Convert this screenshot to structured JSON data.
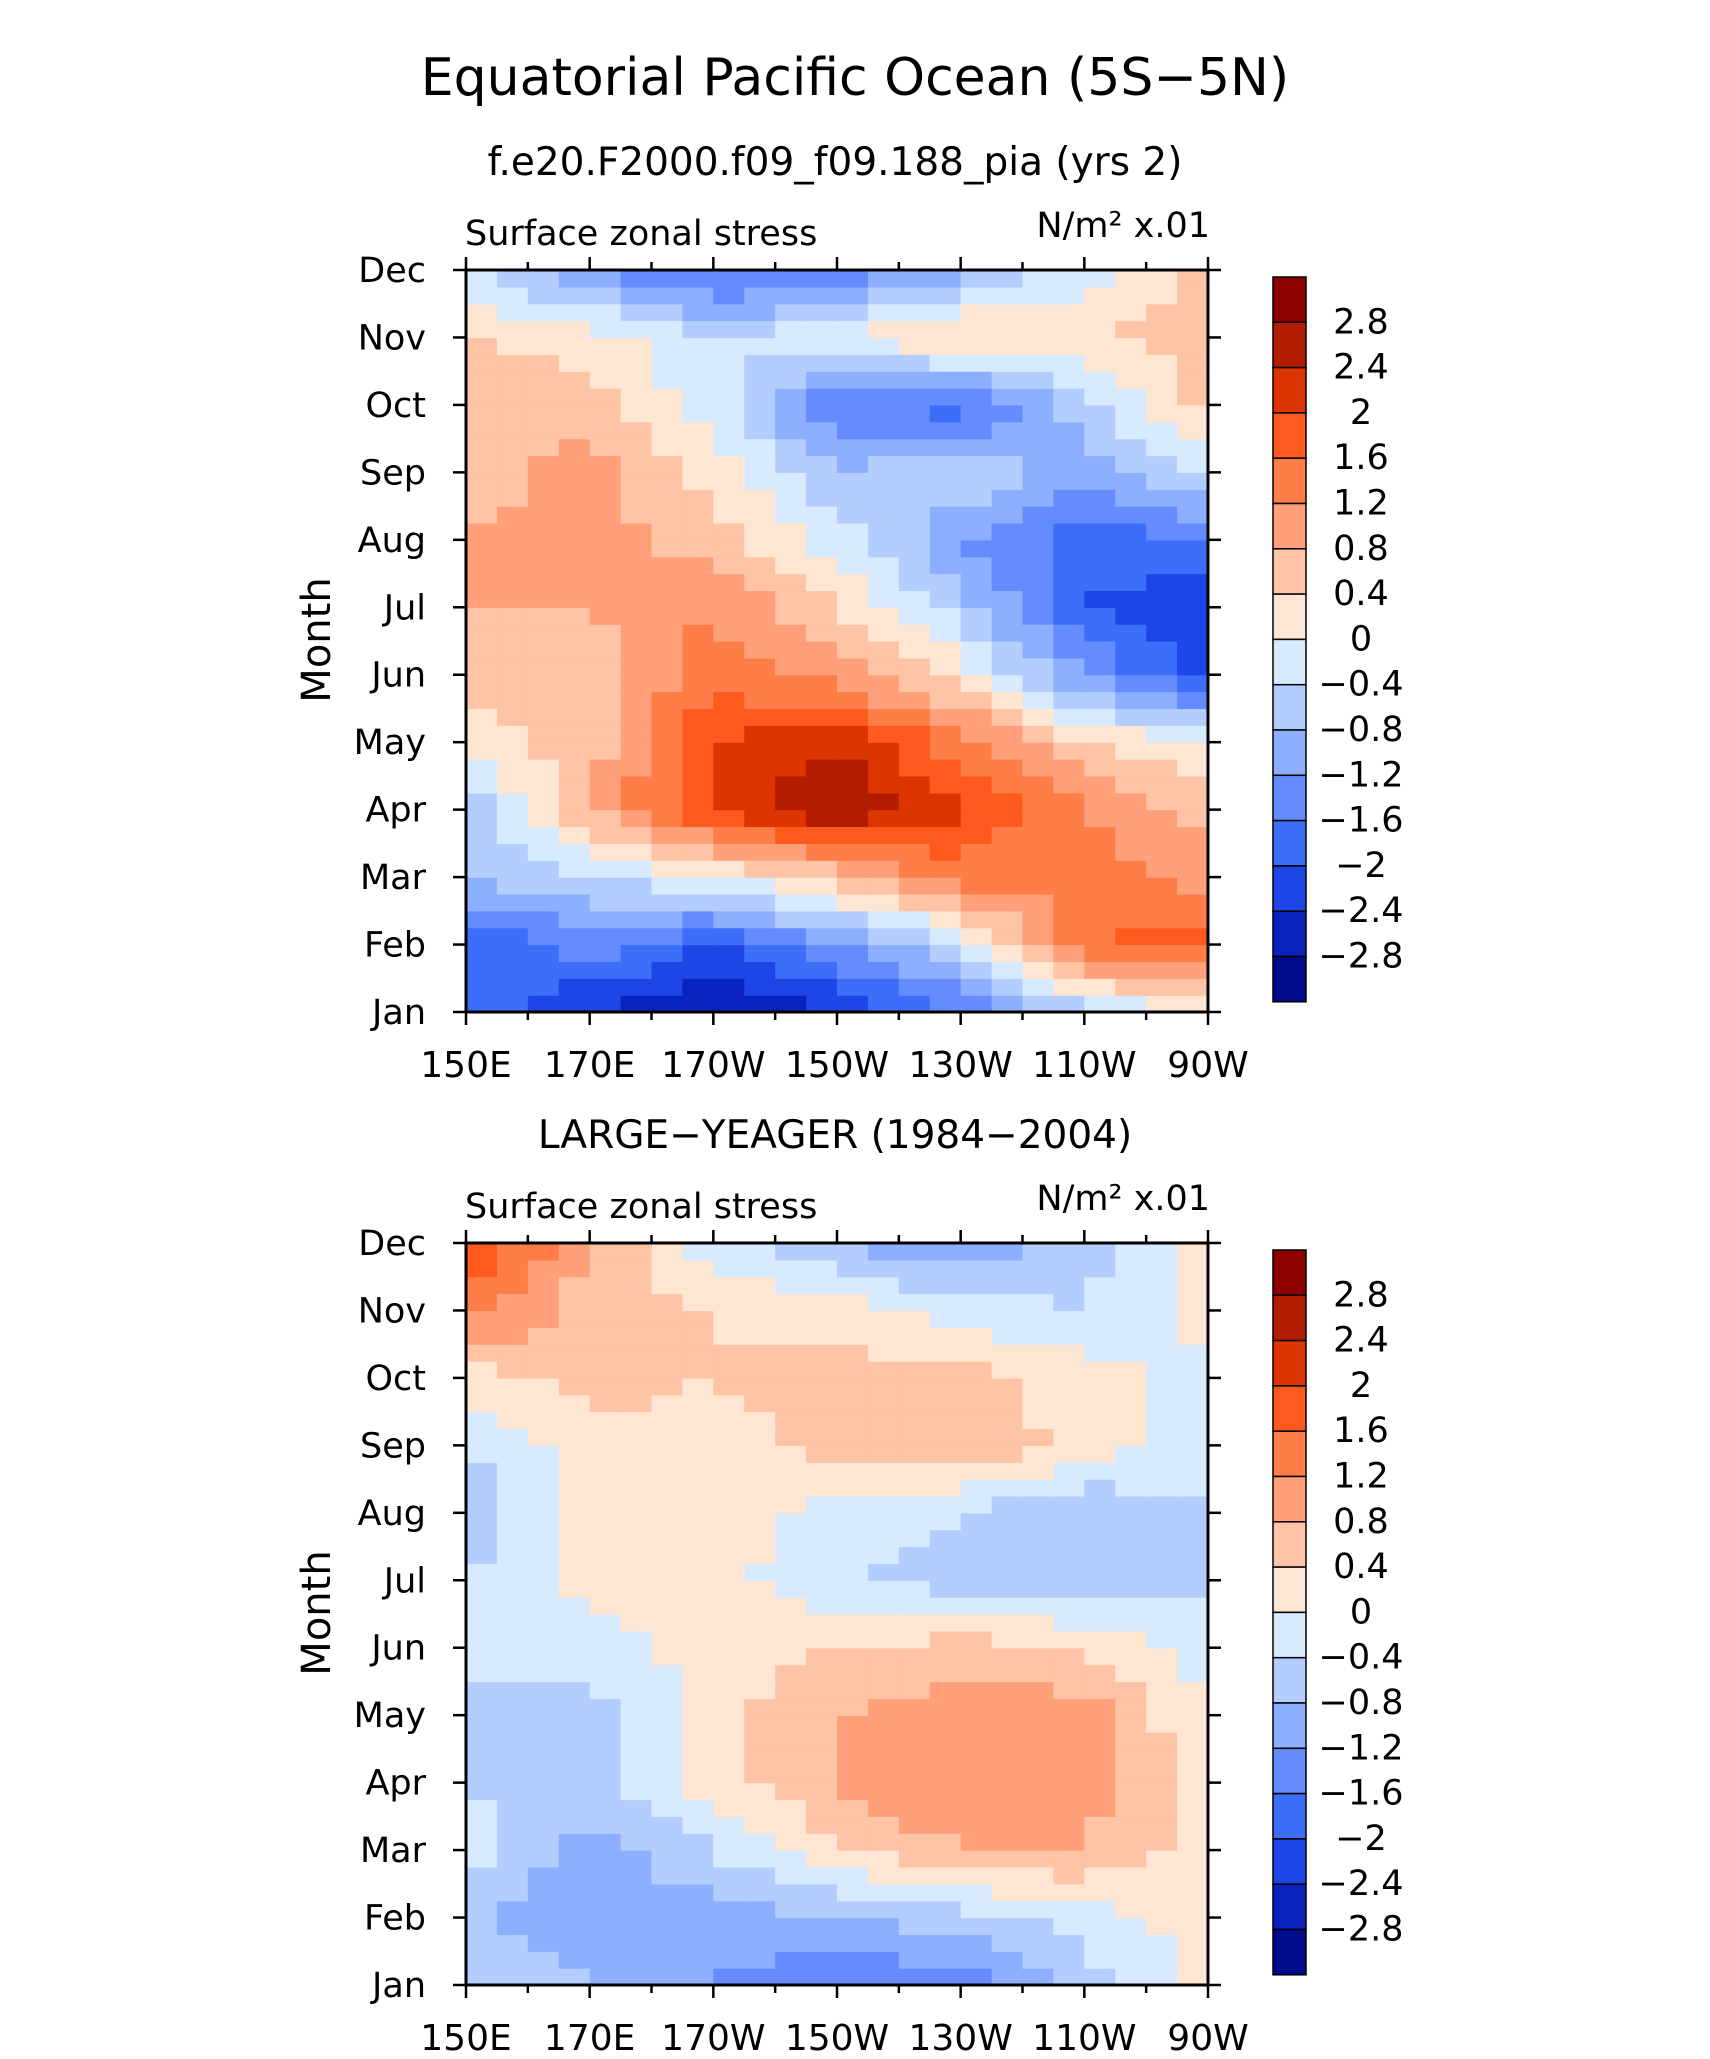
{
  "figure": {
    "title": "Equatorial Pacific Ocean (5S−5N)",
    "subtitle": "f.e20.F2000.f09_f09.188_pia (yrs 2)"
  },
  "colorbar": {
    "labels": [
      "2.8",
      "2.4",
      "2",
      "1.6",
      "1.2",
      "0.8",
      "0.4",
      "0",
      "−0.4",
      "−0.8",
      "−1.2",
      "−1.6",
      "−2",
      "−2.4",
      "−2.8"
    ],
    "levels": [
      2.8,
      2.4,
      2.0,
      1.6,
      1.2,
      0.8,
      0.4,
      0.0,
      -0.4,
      -0.8,
      -1.2,
      -1.6,
      -2.0,
      -2.4,
      -2.8
    ],
    "colors": [
      "#8c0000",
      "#b41c00",
      "#dc3500",
      "#ff5a1e",
      "#ff7d46",
      "#ffa07a",
      "#ffc3a5",
      "#ffe6d2",
      "#d7eaff",
      "#b4cdff",
      "#8cafff",
      "#648cff",
      "#3c6efa",
      "#1e46e6",
      "#0a23be",
      "#000a8c"
    ]
  },
  "chart_data": [
    {
      "type": "heatmap",
      "panel_title": "",
      "left_label": "Surface zonal stress",
      "units_label": "N/m² x.01",
      "ylabel": "Month",
      "xlabel": "",
      "x_ticks": [
        "150E",
        "170E",
        "170W",
        "150W",
        "130W",
        "110W",
        "90W"
      ],
      "x_range_deg_east": [
        150,
        270
      ],
      "y_ticks": [
        "Jan",
        "Feb",
        "Mar",
        "Apr",
        "May",
        "Jun",
        "Jul",
        "Aug",
        "Sep",
        "Oct",
        "Nov",
        "Dec"
      ],
      "grid_lon": [
        "150E",
        "170E",
        "170W",
        "150W",
        "130W",
        "110W",
        "90W"
      ],
      "grid_month": [
        "Jan",
        "Feb",
        "Mar",
        "Apr",
        "May",
        "Jun",
        "Jul",
        "Aug",
        "Sep",
        "Oct",
        "Nov",
        "Dec"
      ],
      "values": [
        [
          -1.8,
          -2.4,
          -2.8,
          -2.4,
          -1.6,
          -0.6,
          0.2
        ],
        [
          -2.0,
          -1.4,
          -2.0,
          -1.2,
          -0.4,
          1.6,
          1.8
        ],
        [
          -0.8,
          -0.4,
          0.0,
          0.6,
          1.4,
          1.4,
          1.0
        ],
        [
          -0.8,
          0.8,
          2.0,
          2.8,
          2.0,
          1.2,
          0.6
        ],
        [
          0.2,
          0.6,
          2.0,
          2.4,
          1.4,
          0.4,
          0.0
        ],
        [
          0.6,
          0.6,
          1.4,
          1.0,
          0.2,
          -1.2,
          -2.2
        ],
        [
          0.8,
          0.8,
          1.2,
          0.4,
          -0.6,
          -2.0,
          -2.4
        ],
        [
          0.8,
          1.0,
          0.6,
          -0.2,
          -1.2,
          -1.8,
          -1.6
        ],
        [
          0.6,
          1.0,
          0.2,
          -0.8,
          -0.4,
          -1.0,
          -0.4
        ],
        [
          0.8,
          0.6,
          -0.2,
          -1.6,
          -1.8,
          -0.6,
          0.6
        ],
        [
          0.4,
          0.2,
          -0.4,
          0.0,
          0.6,
          0.4,
          0.6
        ],
        [
          -0.4,
          -1.2,
          -1.8,
          -1.6,
          -1.0,
          -0.2,
          0.6
        ]
      ]
    },
    {
      "type": "heatmap",
      "panel_title": "LARGE−YEAGER (1984−2004)",
      "left_label": "Surface zonal stress",
      "units_label": "N/m² x.01",
      "ylabel": "Month",
      "xlabel": "",
      "x_ticks": [
        "150E",
        "170E",
        "170W",
        "150W",
        "130W",
        "110W",
        "90W"
      ],
      "x_range_deg_east": [
        150,
        270
      ],
      "y_ticks": [
        "Jan",
        "Feb",
        "Mar",
        "Apr",
        "May",
        "Jun",
        "Jul",
        "Aug",
        "Sep",
        "Oct",
        "Nov",
        "Dec"
      ],
      "grid_lon": [
        "150E",
        "170E",
        "170W",
        "150W",
        "130W",
        "110W",
        "90W"
      ],
      "grid_month": [
        "Jan",
        "Feb",
        "Mar",
        "Apr",
        "May",
        "Jun",
        "Jul",
        "Aug",
        "Sep",
        "Oct",
        "Nov",
        "Dec"
      ],
      "values": [
        [
          -0.4,
          -0.8,
          -1.2,
          -1.6,
          -1.4,
          -0.6,
          0.2
        ],
        [
          -0.8,
          -1.2,
          -1.0,
          -0.8,
          -0.6,
          -0.2,
          0.2
        ],
        [
          -0.2,
          -1.0,
          -0.4,
          0.4,
          0.8,
          0.8,
          0.2
        ],
        [
          -0.4,
          -0.6,
          0.2,
          0.8,
          1.2,
          1.0,
          0.2
        ],
        [
          -0.4,
          -0.6,
          0.2,
          0.8,
          1.0,
          1.0,
          0.0
        ],
        [
          -0.4,
          -0.2,
          0.2,
          0.4,
          0.6,
          0.4,
          -0.2
        ],
        [
          -0.4,
          0.2,
          0.2,
          -0.4,
          -0.6,
          -0.8,
          -0.4
        ],
        [
          -0.8,
          0.2,
          0.2,
          -0.2,
          -0.4,
          -0.8,
          -0.4
        ],
        [
          -0.4,
          0.2,
          0.2,
          0.6,
          0.8,
          0.2,
          -0.2
        ],
        [
          0.2,
          0.6,
          0.4,
          0.6,
          0.6,
          0.2,
          -0.2
        ],
        [
          1.4,
          0.6,
          0.4,
          0.2,
          -0.2,
          -0.4,
          0.2
        ],
        [
          2.0,
          0.8,
          -0.2,
          -0.8,
          -1.2,
          -0.6,
          0.2
        ]
      ]
    }
  ]
}
